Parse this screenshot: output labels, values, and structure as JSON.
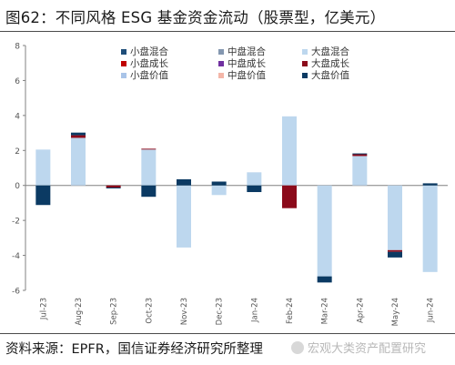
{
  "title": "图62：不同风格 ESG 基金资金流动（股票型，亿美元）",
  "source": "资料来源：EPFR，国信证券经济研究所整理",
  "watermark": "宏观大类资产配置研究",
  "chart_data": {
    "type": "bar",
    "stacked": true,
    "categories": [
      "Jul-23",
      "Aug-23",
      "Sep-23",
      "Oct-23",
      "Nov-23",
      "Dec-23",
      "Jan-24",
      "Feb-24",
      "Mar-24",
      "Apr-24",
      "May-24",
      "Jun-24"
    ],
    "ylim": [
      -6,
      8
    ],
    "yticks": [
      -6,
      -4,
      -2,
      0,
      2,
      4,
      6,
      8
    ],
    "legend_position": "top-center",
    "series": [
      {
        "name": "小盘混合",
        "color": "#1f4e79",
        "values": [
          0,
          0,
          0,
          0,
          0,
          0,
          0,
          0,
          0,
          0,
          0,
          0
        ]
      },
      {
        "name": "小盘成长",
        "color": "#c00000",
        "values": [
          0,
          0,
          0,
          0,
          0,
          0,
          0,
          0,
          0,
          0,
          0,
          0
        ]
      },
      {
        "name": "小盘价值",
        "color": "#a9c4e8",
        "values": [
          0,
          0,
          0,
          0,
          0,
          0,
          0,
          0,
          0,
          0,
          0,
          0
        ]
      },
      {
        "name": "中盘混合",
        "color": "#8497b0",
        "values": [
          0,
          0,
          0,
          0,
          0,
          0,
          0,
          0,
          0,
          0,
          0,
          0
        ]
      },
      {
        "name": "中盘成长",
        "color": "#7030a0",
        "values": [
          0,
          0,
          0,
          0,
          0,
          0,
          0,
          0,
          0,
          0,
          0,
          0
        ]
      },
      {
        "name": "中盘价值",
        "color": "#f4b6a8",
        "values": [
          0,
          0,
          0,
          0,
          0,
          0,
          0,
          0,
          0,
          0,
          0,
          0
        ]
      },
      {
        "name": "大盘混合",
        "color": "#bdd7ee",
        "values": [
          2.05,
          2.72,
          0,
          2.05,
          -3.55,
          -0.55,
          0.75,
          3.95,
          -5.2,
          1.68,
          -3.7,
          -4.95
        ]
      },
      {
        "name": "大盘成长",
        "color": "#8b0a1a",
        "values": [
          0,
          0.15,
          -0.12,
          0.05,
          0,
          0,
          0,
          -1.3,
          0,
          0.1,
          -0.1,
          0
        ]
      },
      {
        "name": "大盘价值",
        "color": "#0b3a63",
        "values": [
          -1.12,
          0.15,
          -0.05,
          -0.65,
          0.35,
          0.22,
          -0.38,
          0,
          -0.35,
          0.05,
          -0.32,
          0.12
        ]
      }
    ]
  }
}
